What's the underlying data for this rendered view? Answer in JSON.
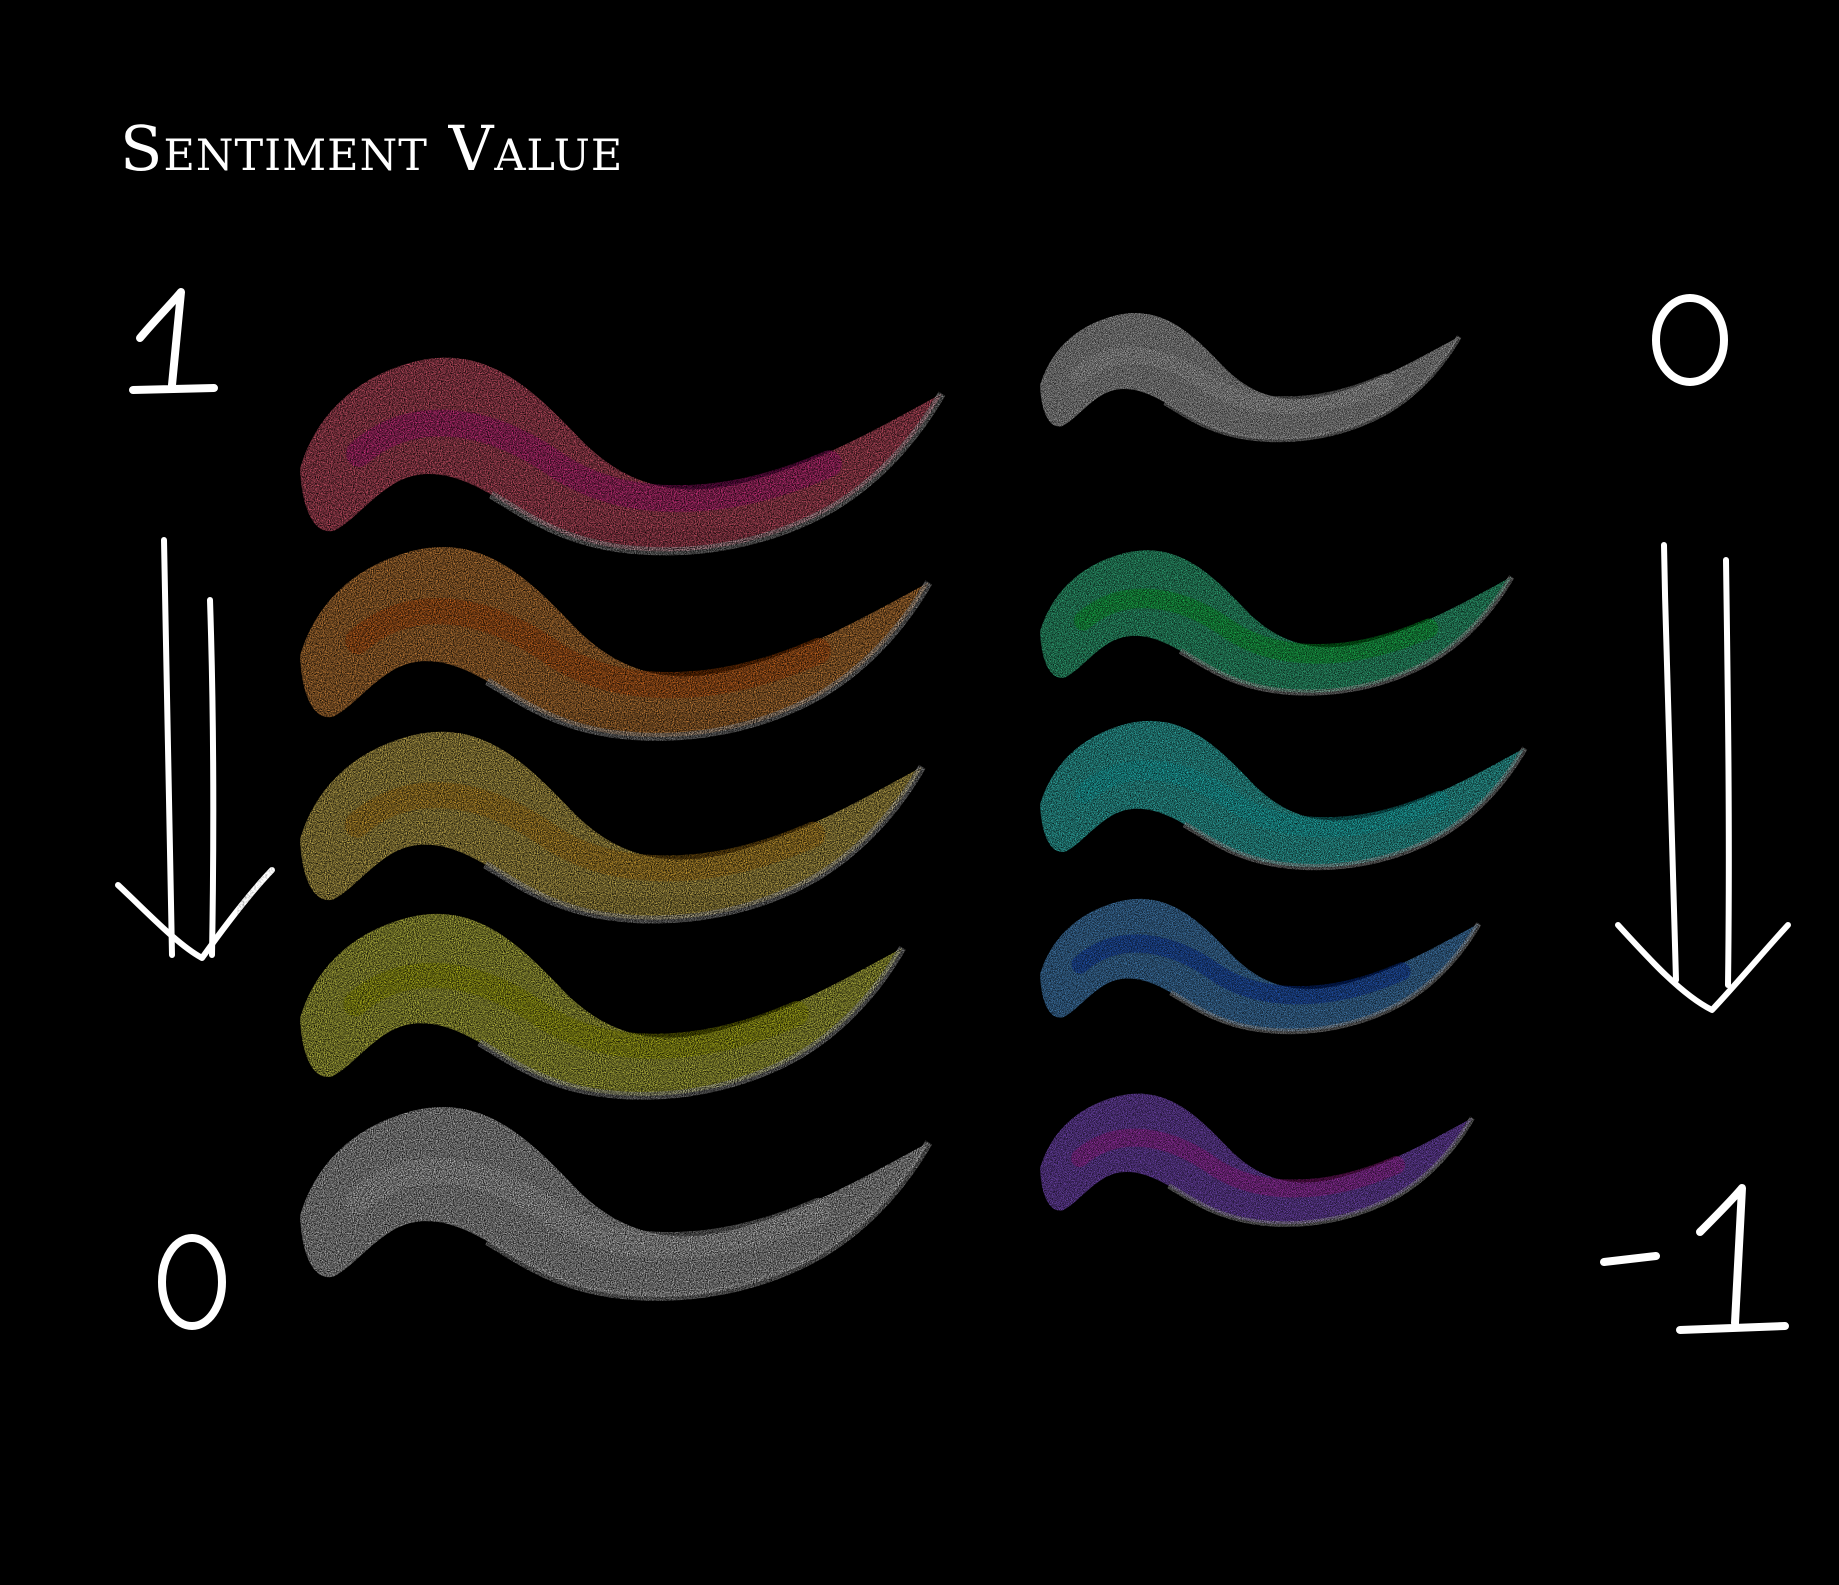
{
  "title": "Sentiment Value",
  "scales": [
    {
      "side": "left",
      "top_label": "1",
      "bottom_label": "0",
      "swatches": [
        "#f0607a",
        "#ef9a45",
        "#efd260",
        "#e4e650",
        "#d8d8d8"
      ],
      "accents": [
        "#ff1fb0",
        "#ff6a10",
        "#ffb020",
        "#d8e000",
        "#ffffff"
      ]
    },
    {
      "side": "right",
      "top_label": "0",
      "bottom_label": "-1",
      "swatches": [
        "#d8d8d8",
        "#40e0a0",
        "#40e8e0",
        "#5aa8f0",
        "#9a60f0"
      ],
      "accents": [
        "#ffffff",
        "#10ff40",
        "#20ffff",
        "#1050ff",
        "#ff30e0"
      ]
    }
  ]
}
